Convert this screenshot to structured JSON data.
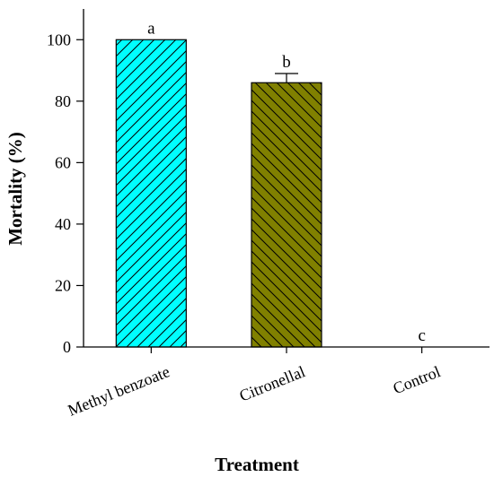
{
  "chart_data": {
    "type": "bar",
    "categories": [
      "Methyl benzoate",
      "Citronellal",
      "Control"
    ],
    "values": [
      100,
      86,
      0
    ],
    "errors": [
      0,
      3,
      0
    ],
    "significance_labels": [
      "a",
      "b",
      "c"
    ],
    "bar_colors": [
      "#00FFFF",
      "#808000",
      "#ffffff"
    ],
    "bar_patterns": [
      "diagonal-up",
      "diagonal-down",
      "none"
    ],
    "xlabel": "Treatment",
    "ylabel": "Mortality (%)",
    "ylim": [
      0,
      110
    ],
    "yticks": [
      0,
      20,
      40,
      60,
      80,
      100
    ],
    "grid": false,
    "legend": "none"
  }
}
